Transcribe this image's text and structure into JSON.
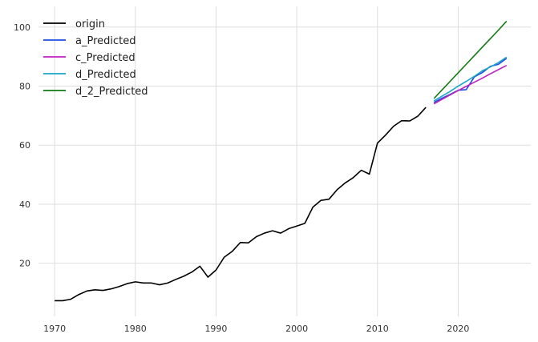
{
  "chart_data": {
    "type": "line",
    "title": "",
    "xlabel": "",
    "ylabel": "",
    "xlim": [
      1968,
      2029
    ],
    "ylim": [
      2,
      107
    ],
    "x_ticks": [
      1970,
      1980,
      1990,
      2000,
      2010,
      2020
    ],
    "y_ticks": [
      20,
      40,
      60,
      80,
      100
    ],
    "grid": true,
    "legend_position": "top-left",
    "series": [
      {
        "name": "origin",
        "color": "#000000",
        "x": [
          1970,
          1971,
          1972,
          1973,
          1974,
          1975,
          1976,
          1977,
          1978,
          1979,
          1980,
          1981,
          1982,
          1983,
          1984,
          1985,
          1986,
          1987,
          1988,
          1989,
          1990,
          1991,
          1992,
          1993,
          1994,
          1995,
          1996,
          1997,
          1998,
          1999,
          2000,
          2001,
          2002,
          2003,
          2004,
          2005,
          2006,
          2007,
          2008,
          2009,
          2010,
          2011,
          2012,
          2013,
          2014,
          2015,
          2016
        ],
        "values": [
          7.3,
          7.3,
          7.8,
          9.4,
          10.6,
          11.0,
          10.8,
          11.3,
          12.1,
          13.1,
          13.7,
          13.3,
          13.3,
          12.7,
          13.3,
          14.5,
          15.6,
          17.0,
          19.0,
          15.3,
          17.7,
          22.0,
          24.0,
          27.0,
          26.9,
          29.0,
          30.2,
          31.0,
          30.2,
          31.7,
          32.6,
          33.5,
          39.0,
          41.3,
          41.7,
          44.9,
          47.2,
          49.0,
          51.5,
          50.2,
          60.7,
          63.4,
          66.4,
          68.3,
          68.2,
          69.8,
          72.8
        ]
      },
      {
        "name": "a_Predicted",
        "color": "#1f4fe0",
        "x": [
          2017,
          2018,
          2019,
          2020,
          2021,
          2022,
          2023,
          2024,
          2025,
          2026
        ],
        "values": [
          74.5,
          75.9,
          77.2,
          78.6,
          78.8,
          83.1,
          84.6,
          86.7,
          87.4,
          89.4
        ]
      },
      {
        "name": "c_Predicted",
        "color": "#c020c0",
        "x": [
          2017,
          2018,
          2019,
          2020,
          2021,
          2022,
          2023,
          2024,
          2025,
          2026
        ],
        "values": [
          74.0,
          75.5,
          77.0,
          78.5,
          79.9,
          81.3,
          82.7,
          84.2,
          85.6,
          87.0
        ]
      },
      {
        "name": "d_Predicted",
        "color": "#1aa6c6",
        "x": [
          2017,
          2018,
          2019,
          2020,
          2021,
          2022,
          2023,
          2024,
          2025,
          2026
        ],
        "values": [
          75.0,
          76.6,
          78.2,
          80.0,
          81.6,
          83.3,
          85.2,
          86.5,
          88.0,
          89.8
        ]
      },
      {
        "name": "d_2_Predicted",
        "color": "#127a12",
        "x": [
          2017,
          2018,
          2019,
          2020,
          2021,
          2022,
          2023,
          2024,
          2025,
          2026
        ],
        "values": [
          75.8,
          78.7,
          81.6,
          84.5,
          87.4,
          90.3,
          93.2,
          96.1,
          99.0,
          102.0
        ]
      }
    ]
  }
}
